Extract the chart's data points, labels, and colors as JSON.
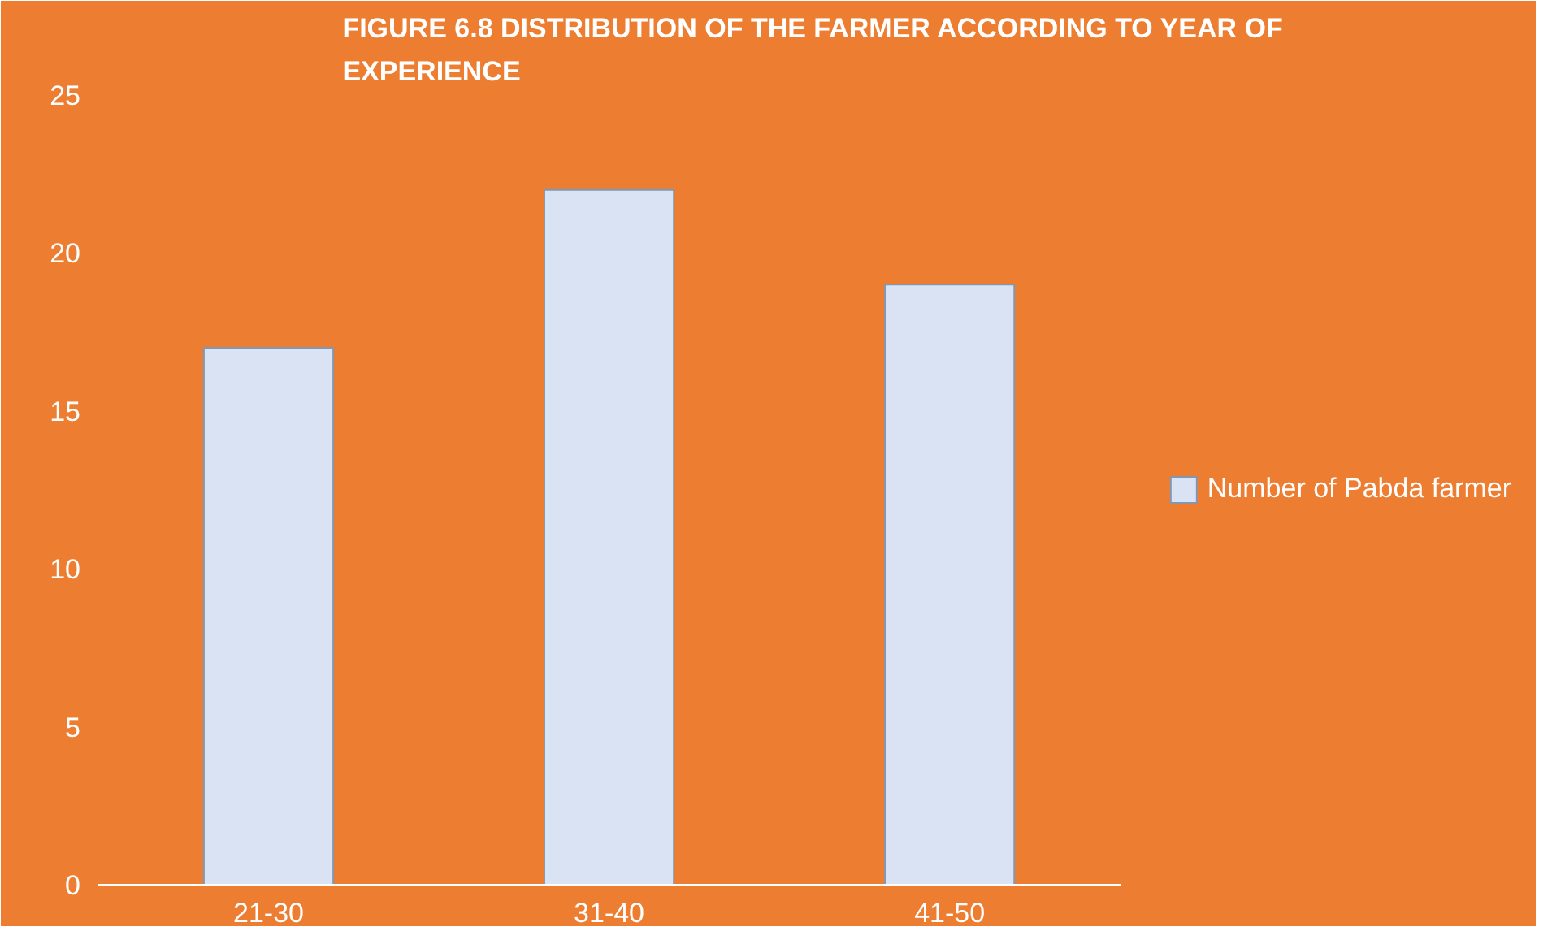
{
  "chart_data": {
    "type": "bar",
    "title": "FIGURE 6.8 DISTRIBUTION OF THE FARMER ACCORDING TO YEAR OF EXPERIENCE",
    "categories": [
      "21-30",
      "31-40",
      "41-50"
    ],
    "series": [
      {
        "name": "Number of Pabda farmer",
        "color": "#dae3f3",
        "values": [
          17,
          22,
          19
        ]
      }
    ],
    "ylim": [
      0,
      25
    ],
    "yticks": [
      0,
      5,
      10,
      15,
      20,
      25
    ],
    "legend": "right"
  }
}
